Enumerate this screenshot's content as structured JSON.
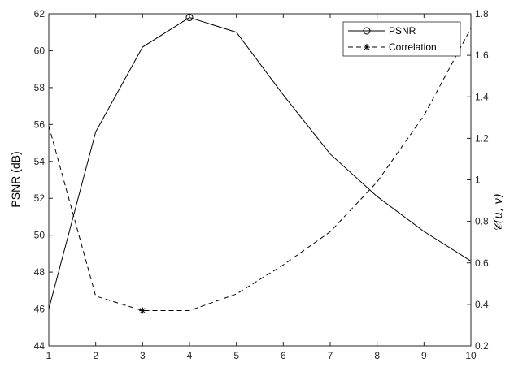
{
  "chart_data": {
    "type": "line",
    "title": "",
    "x": [
      1,
      2,
      3,
      4,
      5,
      6,
      7,
      8,
      9,
      10
    ],
    "xlabel": "",
    "xlim": [
      1,
      10
    ],
    "xticks": [
      "1",
      "2",
      "3",
      "4",
      "5",
      "6",
      "7",
      "8",
      "9",
      "10"
    ],
    "ylabel_left": "PSNR (dB)",
    "ylim_left": [
      44,
      62
    ],
    "yticks_left": [
      "44",
      "46",
      "48",
      "50",
      "52",
      "54",
      "56",
      "58",
      "60",
      "62"
    ],
    "ylabel_right": "𝒞(u, v)",
    "ylim_right": [
      0.2,
      1.8
    ],
    "yticks_right": [
      "0.2",
      "0.4",
      "0.6",
      "0.8",
      "1",
      "1.2",
      "1.4",
      "1.6",
      "1.8"
    ],
    "grid": false,
    "legend_position": "top-right",
    "series": [
      {
        "name": "PSNR",
        "axis": "left",
        "line_style": "solid",
        "marker": "circle",
        "marker_at_x": 4,
        "values": [
          46.0,
          55.6,
          60.2,
          61.8,
          61.0,
          57.6,
          54.4,
          52.1,
          50.2,
          48.6
        ]
      },
      {
        "name": "Correlation",
        "axis": "right",
        "line_style": "dashed",
        "marker": "asterisk",
        "marker_at_x": 3,
        "values": [
          1.26,
          0.44,
          0.37,
          0.37,
          0.45,
          0.59,
          0.75,
          0.99,
          1.31,
          1.73
        ]
      }
    ]
  }
}
